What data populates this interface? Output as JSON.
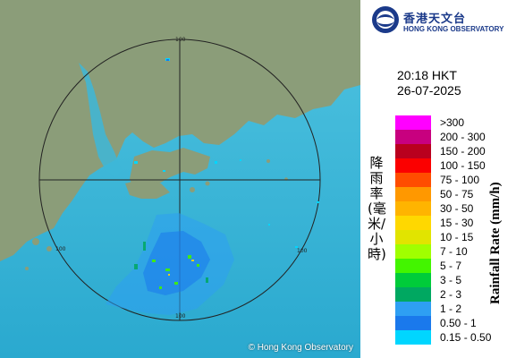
{
  "map": {
    "copyright": "© Hong Kong Observatory",
    "range_labels": [
      {
        "text": "100",
        "pos": "top"
      },
      {
        "text": "100",
        "pos": "left"
      },
      {
        "text": "100",
        "pos": "right"
      },
      {
        "text": "100",
        "pos": "bottom"
      }
    ],
    "colors": {
      "sea": "#35b9da",
      "land": "#8a9c78",
      "range_ring": "#222222"
    }
  },
  "logo": {
    "name_cn": "香港天文台",
    "name_en": "HONG KONG OBSERVATORY",
    "brand_color": "#1b3a8a"
  },
  "timestamp": {
    "time": "20:18 HKT",
    "date": "26-07-2025"
  },
  "legend": {
    "title_cn": "降雨率(毫米/小時)",
    "title_en": "Rainfall Rate (mm/h)",
    "items": [
      {
        "label": ">300",
        "color": "#ff00ff"
      },
      {
        "label": "200 - 300",
        "color": "#c8007f"
      },
      {
        "label": "150 - 200",
        "color": "#b9001e"
      },
      {
        "label": "100 - 150",
        "color": "#fb0000"
      },
      {
        "label": "75 - 100",
        "color": "#ff4d00"
      },
      {
        "label": "50 - 75",
        "color": "#ff9800"
      },
      {
        "label": "30 - 50",
        "color": "#ffb400"
      },
      {
        "label": "15 - 30",
        "color": "#ffd800"
      },
      {
        "label": "10 - 15",
        "color": "#e1e400"
      },
      {
        "label": "7 - 10",
        "color": "#a0ff00"
      },
      {
        "label": "5 - 7",
        "color": "#43f500"
      },
      {
        "label": "3 - 5",
        "color": "#00cc3a"
      },
      {
        "label": "2 - 3",
        "color": "#00a861"
      },
      {
        "label": "1 - 2",
        "color": "#2e9ff3"
      },
      {
        "label": "0.50 - 1",
        "color": "#1a79ec"
      },
      {
        "label": "0.15 - 0.50",
        "color": "#00d6ff"
      }
    ]
  }
}
